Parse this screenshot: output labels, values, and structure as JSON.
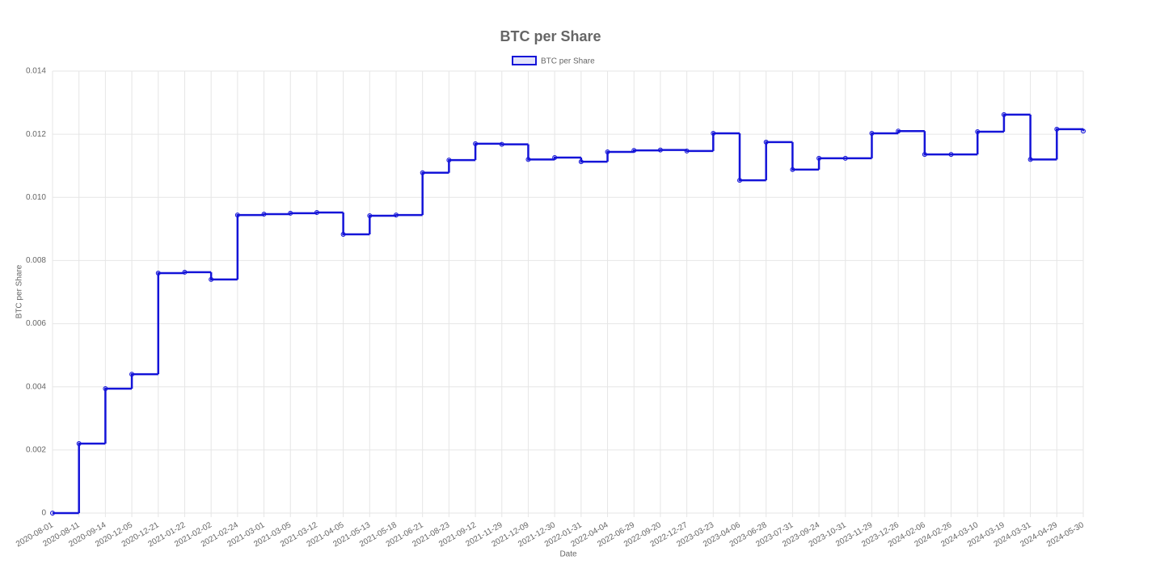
{
  "chart_data": {
    "type": "line",
    "stepped": true,
    "title": "BTC per Share",
    "x_label": "Date",
    "y_label": "BTC per Share",
    "categories": [
      "2020-08-01",
      "2020-08-11",
      "2020-09-14",
      "2020-12-05",
      "2020-12-21",
      "2021-01-22",
      "2021-02-02",
      "2021-02-24",
      "2021-03-01",
      "2021-03-05",
      "2021-03-12",
      "2021-04-05",
      "2021-05-13",
      "2021-05-18",
      "2021-06-21",
      "2021-08-23",
      "2021-09-12",
      "2021-11-29",
      "2021-12-09",
      "2021-12-30",
      "2022-01-31",
      "2022-04-04",
      "2022-06-29",
      "2022-09-20",
      "2022-12-27",
      "2023-03-23",
      "2023-04-06",
      "2023-06-28",
      "2023-07-31",
      "2023-09-24",
      "2023-10-31",
      "2023-11-29",
      "2023-12-26",
      "2024-02-06",
      "2024-02-26",
      "2024-03-10",
      "2024-03-19",
      "2024-03-31",
      "2024-04-29",
      "2024-05-30"
    ],
    "series": [
      {
        "name": "BTC per Share",
        "color": "#1414d8",
        "values": [
          0,
          0.0022,
          0.00394,
          0.0044,
          0.0076,
          0.00763,
          0.0074,
          0.00944,
          0.00947,
          0.0095,
          0.00952,
          0.00883,
          0.00942,
          0.00944,
          0.01078,
          0.01118,
          0.0117,
          0.01168,
          0.0112,
          0.01126,
          0.01113,
          0.01144,
          0.01149,
          0.0115,
          0.01147,
          0.01203,
          0.01054,
          0.01175,
          0.01088,
          0.01124,
          0.01124,
          0.01203,
          0.0121,
          0.01136,
          0.01136,
          0.01208,
          0.01262,
          0.0112,
          0.01216,
          0.0121
        ]
      }
    ],
    "ylim": [
      0,
      0.014
    ],
    "yticks": [
      0,
      0.002,
      0.004,
      0.006,
      0.008,
      {
        "value": 0.01,
        "label": "0.010"
      },
      0.012,
      0.014
    ],
    "grid": true,
    "legend": "top"
  }
}
